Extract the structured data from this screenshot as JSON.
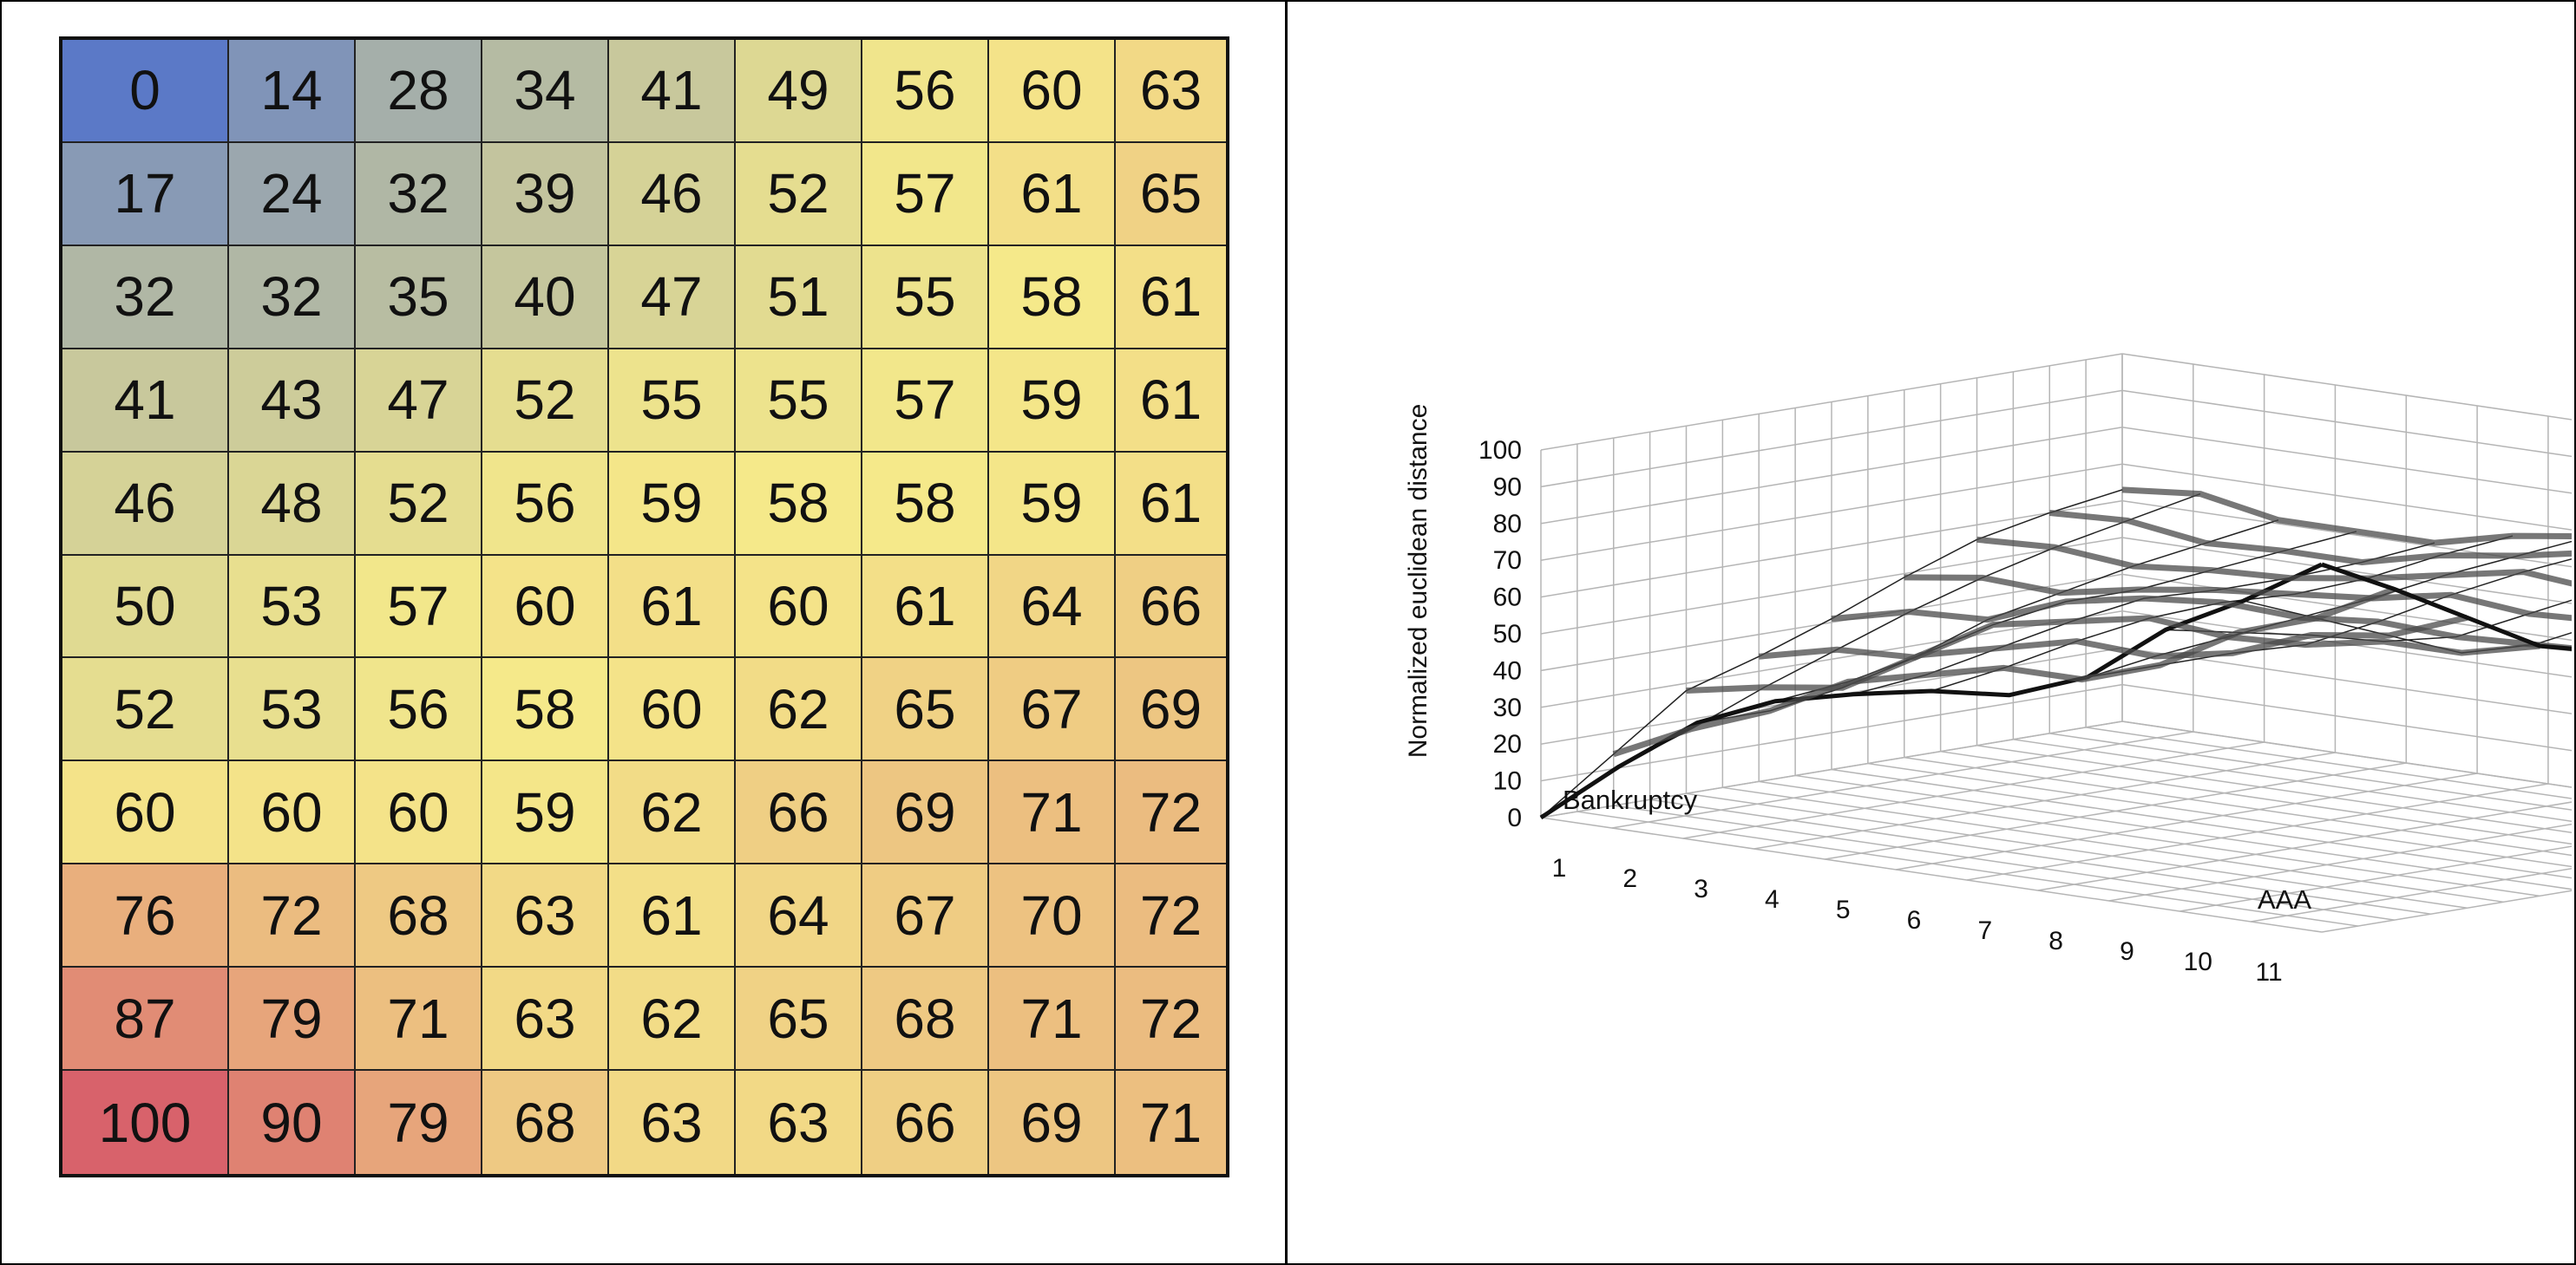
{
  "chart_data": [
    {
      "type": "heatmap",
      "grid": [
        [
          0,
          14,
          28,
          34,
          41,
          49,
          56,
          60,
          63
        ],
        [
          17,
          24,
          32,
          39,
          46,
          52,
          57,
          61,
          65
        ],
        [
          32,
          32,
          35,
          40,
          47,
          51,
          55,
          58,
          61
        ],
        [
          41,
          43,
          47,
          52,
          55,
          55,
          57,
          59,
          61
        ],
        [
          46,
          48,
          52,
          56,
          59,
          58,
          58,
          59,
          61
        ],
        [
          50,
          53,
          57,
          60,
          61,
          60,
          61,
          64,
          66
        ],
        [
          52,
          53,
          56,
          58,
          60,
          62,
          65,
          67,
          69
        ],
        [
          60,
          60,
          60,
          59,
          62,
          66,
          69,
          71,
          72
        ],
        [
          76,
          72,
          68,
          63,
          61,
          64,
          67,
          70,
          72
        ],
        [
          87,
          79,
          71,
          63,
          62,
          65,
          68,
          71,
          72
        ],
        [
          100,
          90,
          79,
          68,
          63,
          63,
          66,
          69,
          71
        ]
      ],
      "color_scale": [
        "#5b79c7",
        "#f5e98a",
        "#d8626b"
      ]
    },
    {
      "type": "surface",
      "ylabel": "Normalized euclidean distance",
      "zlim": [
        0,
        100
      ],
      "z_ticks": [
        "0",
        "10",
        "20",
        "30",
        "40",
        "50",
        "60",
        "70",
        "80",
        "90",
        "100"
      ],
      "x_ticks": [
        "1",
        "2",
        "3",
        "4",
        "5",
        "6",
        "7",
        "8",
        "9",
        "10",
        "11"
      ],
      "annotations": [
        "Bankruptcy",
        "AAA"
      ]
    }
  ]
}
